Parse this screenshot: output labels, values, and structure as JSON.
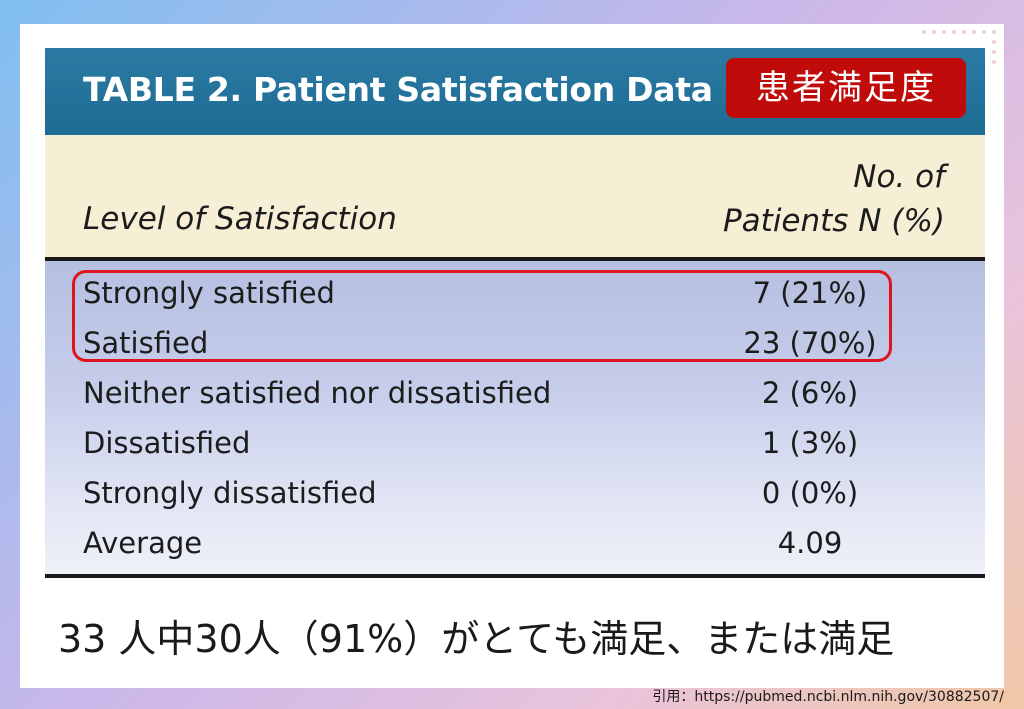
{
  "table": {
    "title": "TABLE 2. Patient Satisfaction Data",
    "badge": "患者満足度",
    "header": {
      "left": "Level of Satisfaction",
      "right_line1": "No. of",
      "right_line2": "Patients N (%)"
    },
    "rows": [
      {
        "label": "Strongly satisfied",
        "value": "7 (21%)"
      },
      {
        "label": "Satisfied",
        "value": "23 (70%)"
      },
      {
        "label": "Neither satisfied nor dissatisfied",
        "value": "2 (6%)"
      },
      {
        "label": "Dissatisfied",
        "value": "1 (3%)"
      },
      {
        "label": "Strongly dissatisfied",
        "value": "0 (0%)"
      },
      {
        "label": "Average",
        "value": "4.09"
      }
    ]
  },
  "summary": "33 人中30人（91%）がとても満足、または満足",
  "citation": "引用：https://pubmed.ncbi.nlm.nih.gov/30882507/",
  "colors": {
    "title_bar": "#1d6c94",
    "badge": "#c00b0b",
    "highlight_border": "#e0141e",
    "header_background": "#f6efd6"
  }
}
